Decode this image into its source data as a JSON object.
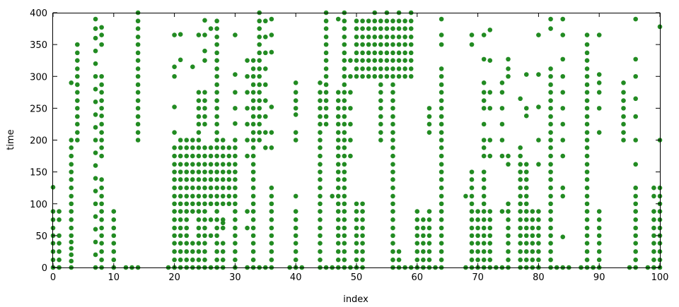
{
  "chart_data": {
    "type": "scatter",
    "title": "",
    "xlabel": "index",
    "ylabel": "time",
    "xlim": [
      0,
      100
    ],
    "ylim": [
      0,
      400
    ],
    "xticks": [
      0,
      10,
      20,
      30,
      40,
      50,
      60,
      70,
      80,
      90,
      100
    ],
    "yticks": [
      0,
      50,
      100,
      150,
      200,
      250,
      300,
      350,
      400
    ],
    "grid": false,
    "legend": "none",
    "marker_color": "#228b22",
    "marker": "filled-circle",
    "columns": [
      {
        "x": 0,
        "y": [
          0,
          12,
          25,
          38,
          50,
          62,
          75,
          88,
          126
        ]
      },
      {
        "x": 1,
        "y": [
          0,
          12,
          25,
          38,
          50,
          75,
          88
        ]
      },
      {
        "x": 3,
        "y": [
          0,
          10,
          20,
          30,
          40,
          50,
          62,
          75,
          88,
          100,
          112,
          125,
          138,
          150,
          162,
          175,
          188,
          200,
          290
        ]
      },
      {
        "x": 4,
        "y": [
          200,
          212,
          225,
          237,
          250,
          262,
          275,
          287,
          300,
          312,
          325,
          337,
          350
        ]
      },
      {
        "x": 7,
        "y": [
          0,
          20,
          40,
          60,
          80,
          100,
          120,
          140,
          160,
          180,
          200,
          220,
          240,
          260,
          280,
          300,
          320,
          340,
          360,
          375,
          390
        ]
      },
      {
        "x": 8,
        "y": [
          0,
          12,
          25,
          38,
          50,
          62,
          75,
          88,
          100,
          112,
          125,
          138,
          175,
          188,
          200,
          212,
          225,
          238,
          250,
          262,
          275,
          287,
          300,
          350,
          365,
          377
        ]
      },
      {
        "x": 10,
        "y": [
          0,
          12,
          25,
          38,
          50,
          62,
          75,
          88
        ]
      },
      {
        "x": 12,
        "y": [
          0
        ]
      },
      {
        "x": 13,
        "y": [
          0
        ]
      },
      {
        "x": 14,
        "y": [
          200,
          212,
          225,
          237,
          250,
          262,
          275,
          287,
          300,
          312,
          325,
          337,
          350,
          362,
          375,
          387,
          400,
          0
        ]
      },
      {
        "x": 19,
        "y": [
          0
        ]
      },
      {
        "x": 20,
        "y": [
          0,
          12,
          25,
          38,
          50,
          62,
          75,
          88,
          100,
          112,
          125,
          138,
          150,
          162,
          175,
          188,
          212,
          252,
          300,
          315,
          365
        ]
      },
      {
        "x": 21,
        "y": [
          0,
          12,
          25,
          38,
          50,
          62,
          75,
          88,
          100,
          112,
          125,
          138,
          150,
          162,
          175,
          188,
          200,
          326,
          366
        ]
      },
      {
        "x": 22,
        "y": [
          0,
          12,
          25,
          38,
          50,
          62,
          75,
          88,
          100,
          112,
          125,
          138,
          150,
          162,
          175,
          188,
          200
        ]
      },
      {
        "x": 23,
        "y": [
          0,
          12,
          25,
          38,
          88,
          100,
          112,
          125,
          138,
          150,
          162,
          175,
          188,
          200,
          315
        ]
      },
      {
        "x": 24,
        "y": [
          0,
          12,
          25,
          38,
          50,
          62,
          75,
          88,
          100,
          112,
          125,
          138,
          150,
          162,
          175,
          188,
          200,
          212,
          225,
          237,
          250,
          262,
          275,
          365
        ]
      },
      {
        "x": 25,
        "y": [
          0,
          12,
          25,
          38,
          50,
          62,
          75,
          88,
          100,
          112,
          125,
          138,
          150,
          162,
          175,
          188,
          225,
          237,
          250,
          262,
          275,
          325,
          340,
          365,
          388
        ]
      },
      {
        "x": 26,
        "y": [
          0,
          50,
          75,
          100,
          112,
          125,
          138,
          150,
          162,
          175,
          188,
          375
        ]
      },
      {
        "x": 27,
        "y": [
          0,
          12,
          25,
          38,
          50,
          62,
          75,
          88,
          100,
          112,
          125,
          138,
          150,
          162,
          175,
          188,
          200,
          212,
          225,
          237,
          250,
          262,
          275,
          287,
          300,
          312,
          325,
          337,
          350,
          362,
          375,
          387
        ]
      },
      {
        "x": 28,
        "y": [
          0,
          12,
          25,
          38,
          62,
          70,
          75,
          100,
          112,
          125,
          138,
          150,
          162,
          175,
          188,
          200
        ]
      },
      {
        "x": 29,
        "y": [
          100,
          112,
          125,
          138,
          150,
          162,
          175,
          188
        ]
      },
      {
        "x": 30,
        "y": [
          0,
          12,
          25,
          38,
          50,
          62,
          75,
          88,
          100,
          112,
          125,
          138,
          150,
          162,
          175,
          188,
          200,
          226,
          250,
          275,
          303,
          365
        ]
      },
      {
        "x": 32,
        "y": [
          0,
          62,
          88,
          175,
          200,
          225,
          250,
          275,
          300,
          325
        ]
      },
      {
        "x": 33,
        "y": [
          0,
          12,
          25,
          38,
          50,
          62,
          75,
          88,
          100,
          112,
          125,
          138,
          150,
          162,
          175,
          188,
          200,
          212,
          225,
          237,
          250,
          262,
          275,
          287,
          300,
          312,
          325
        ]
      },
      {
        "x": 34,
        "y": [
          0,
          200,
          212,
          225,
          237,
          250,
          262,
          275,
          287,
          300,
          312,
          325,
          337,
          350,
          362,
          375,
          387,
          400
        ]
      },
      {
        "x": 35,
        "y": [
          0,
          188,
          212,
          237,
          262,
          287,
          312,
          337,
          362,
          387
        ]
      },
      {
        "x": 36,
        "y": [
          0,
          12,
          25,
          38,
          50,
          62,
          75,
          88,
          100,
          112,
          125,
          188,
          212,
          252,
          338,
          365,
          390
        ]
      },
      {
        "x": 39,
        "y": [
          0
        ]
      },
      {
        "x": 40,
        "y": [
          0,
          12,
          25,
          38,
          50,
          62,
          75,
          88,
          112,
          200,
          212,
          240,
          250,
          262,
          275,
          290
        ]
      },
      {
        "x": 41,
        "y": [
          0
        ]
      },
      {
        "x": 44,
        "y": [
          0,
          12,
          25,
          38,
          50,
          62,
          75,
          88,
          100,
          112,
          125,
          138,
          150,
          162,
          175,
          188,
          200,
          212,
          225,
          237,
          250,
          262,
          275,
          290
        ]
      },
      {
        "x": 45,
        "y": [
          0,
          225,
          237,
          250,
          262,
          275,
          287,
          300,
          312,
          325,
          337,
          350,
          362,
          375,
          387,
          400
        ]
      },
      {
        "x": 46,
        "y": [
          0,
          112
        ]
      },
      {
        "x": 47,
        "y": [
          0,
          12,
          25,
          38,
          50,
          62,
          75,
          88,
          100,
          112,
          125,
          138,
          150,
          162,
          175,
          188,
          200,
          212,
          225,
          237,
          250,
          262,
          275,
          390
        ]
      },
      {
        "x": 48,
        "y": [
          0,
          12,
          25,
          38,
          50,
          62,
          75,
          88,
          100,
          112,
          125,
          138,
          150,
          162,
          175,
          188,
          200,
          212,
          225,
          237,
          250,
          262,
          275,
          287,
          300,
          312,
          325,
          337,
          350,
          362,
          375,
          387,
          400
        ]
      },
      {
        "x": 49,
        "y": [
          0,
          175,
          200,
          225,
          250,
          275,
          300,
          325
        ]
      },
      {
        "x": 50,
        "y": [
          0,
          12,
          25,
          38,
          50,
          62,
          75,
          88,
          100,
          300,
          312,
          325,
          337,
          350,
          362,
          375,
          387
        ]
      },
      {
        "x": 51,
        "y": [
          0,
          12,
          25,
          38,
          50,
          62,
          75,
          88,
          100,
          300,
          312,
          325,
          337,
          350,
          362,
          375,
          387
        ]
      },
      {
        "x": 52,
        "y": [
          300,
          312,
          325,
          337,
          350,
          362,
          375,
          387
        ]
      },
      {
        "x": 53,
        "y": [
          300,
          312,
          325,
          337,
          350,
          362,
          375,
          387,
          400
        ]
      },
      {
        "x": 54,
        "y": [
          200,
          212,
          225,
          237,
          250,
          262,
          275,
          287,
          300,
          312,
          325,
          337,
          350,
          362,
          375,
          387
        ]
      },
      {
        "x": 55,
        "y": [
          300,
          312,
          325,
          337,
          350,
          362,
          375,
          387,
          400
        ]
      },
      {
        "x": 56,
        "y": [
          0,
          12,
          25,
          38,
          50,
          62,
          75,
          88,
          100,
          112,
          125,
          138,
          150,
          162,
          175,
          188,
          200,
          212,
          225,
          237,
          250,
          262,
          275,
          287,
          300,
          312,
          325,
          337,
          350,
          362,
          375,
          387
        ]
      },
      {
        "x": 57,
        "y": [
          0,
          12,
          25,
          300,
          312,
          325,
          337,
          350,
          362,
          375,
          387,
          400
        ]
      },
      {
        "x": 58,
        "y": [
          0,
          300,
          312,
          325,
          337,
          350,
          362,
          375,
          387
        ]
      },
      {
        "x": 59,
        "y": [
          0,
          300,
          312,
          325,
          337,
          350,
          362,
          375,
          387,
          400
        ]
      },
      {
        "x": 60,
        "y": [
          0,
          12,
          25,
          38,
          50,
          62,
          75,
          88
        ]
      },
      {
        "x": 61,
        "y": [
          0,
          12,
          25,
          38,
          50,
          62,
          75
        ]
      },
      {
        "x": 62,
        "y": [
          0,
          12,
          25,
          38,
          50,
          62,
          75,
          88,
          212,
          225,
          237,
          250
        ]
      },
      {
        "x": 63,
        "y": [
          0
        ]
      },
      {
        "x": 64,
        "y": [
          0,
          12,
          25,
          38,
          50,
          62,
          75,
          88,
          100,
          112,
          125,
          138,
          150,
          162,
          175,
          188,
          200,
          212,
          225,
          237,
          250,
          262,
          275,
          287,
          300,
          312,
          350,
          365,
          390
        ]
      },
      {
        "x": 68,
        "y": [
          0,
          112
        ]
      },
      {
        "x": 69,
        "y": [
          0,
          12,
          25,
          38,
          50,
          62,
          75,
          88,
          100,
          112,
          125,
          138,
          150,
          350,
          365
        ]
      },
      {
        "x": 70,
        "y": [
          0,
          12,
          25,
          38,
          50,
          62,
          75,
          88
        ]
      },
      {
        "x": 71,
        "y": [
          0,
          12,
          25,
          38,
          50,
          62,
          75,
          88,
          100,
          112,
          125,
          138,
          150,
          175,
          188,
          200,
          225,
          250,
          262,
          275,
          290,
          327,
          365
        ]
      },
      {
        "x": 72,
        "y": [
          0,
          12,
          25,
          38,
          50,
          62,
          75,
          88,
          175,
          200,
          250,
          275,
          325,
          373
        ]
      },
      {
        "x": 73,
        "y": [
          0
        ]
      },
      {
        "x": 74,
        "y": [
          0,
          88,
          175,
          200,
          225,
          250,
          275,
          290
        ]
      },
      {
        "x": 75,
        "y": [
          0,
          12,
          25,
          38,
          50,
          62,
          75,
          88,
          100,
          162,
          175,
          300,
          312,
          327
        ]
      },
      {
        "x": 77,
        "y": [
          0,
          12,
          25,
          38,
          50,
          62,
          75,
          88,
          100,
          112,
          125,
          138,
          150,
          162,
          175,
          188,
          265
        ]
      },
      {
        "x": 78,
        "y": [
          0,
          12,
          25,
          38,
          50,
          62,
          75,
          88,
          100,
          112,
          125,
          138,
          150,
          162,
          238,
          250,
          303
        ]
      },
      {
        "x": 79,
        "y": [
          0,
          12,
          25,
          38,
          50,
          62,
          75,
          88
        ]
      },
      {
        "x": 80,
        "y": [
          0,
          12,
          25,
          38,
          50,
          62,
          75,
          88,
          162,
          200,
          252,
          303,
          365
        ]
      },
      {
        "x": 82,
        "y": [
          0,
          12,
          25,
          38,
          50,
          62,
          75,
          88,
          100,
          112,
          125,
          138,
          150,
          162,
          175,
          188,
          200,
          212,
          225,
          237,
          250,
          262,
          275,
          287,
          300,
          312,
          375,
          390
        ]
      },
      {
        "x": 83,
        "y": [
          0
        ]
      },
      {
        "x": 84,
        "y": [
          0,
          48,
          112,
          125,
          175,
          200,
          225,
          250,
          275,
          300,
          327,
          365,
          390
        ]
      },
      {
        "x": 85,
        "y": [
          0
        ]
      },
      {
        "x": 87,
        "y": [
          0
        ]
      },
      {
        "x": 88,
        "y": [
          0,
          12,
          25,
          38,
          50,
          62,
          75,
          88,
          100,
          112,
          125,
          138,
          150,
          162,
          175,
          188,
          200,
          212,
          225,
          237,
          250,
          262,
          275,
          287,
          300,
          312,
          325,
          337,
          350,
          365
        ]
      },
      {
        "x": 89,
        "y": [
          0
        ]
      },
      {
        "x": 90,
        "y": [
          0,
          12,
          25,
          38,
          50,
          62,
          75,
          88,
          212,
          250,
          275,
          290,
          303,
          365
        ]
      },
      {
        "x": 94,
        "y": [
          200,
          212,
          225,
          237,
          250,
          262,
          275,
          290
        ]
      },
      {
        "x": 95,
        "y": [
          0
        ]
      },
      {
        "x": 96,
        "y": [
          0,
          12,
          25,
          38,
          50,
          62,
          75,
          88,
          100,
          112,
          125,
          162,
          200,
          237,
          265,
          300,
          327,
          390
        ]
      },
      {
        "x": 98,
        "y": [
          0
        ]
      },
      {
        "x": 99,
        "y": [
          0,
          12,
          25,
          38,
          50,
          62,
          75,
          88,
          112,
          125
        ]
      },
      {
        "x": 100,
        "y": [
          0,
          12,
          25,
          38,
          50,
          62,
          75,
          88,
          100,
          112,
          125,
          200,
          378
        ]
      }
    ]
  }
}
